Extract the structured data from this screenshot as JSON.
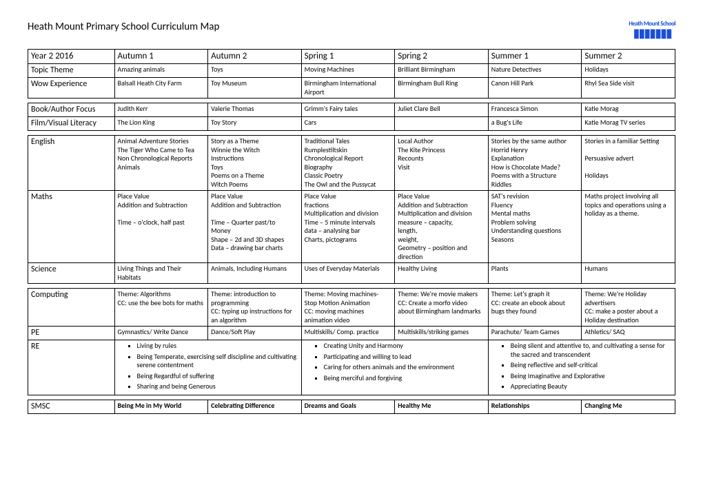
{
  "title": "Heath Mount Primary School Curriculum Map",
  "logo": {
    "arc_text": "Heath Mount School",
    "people": "iiiiiiii"
  },
  "header_row": {
    "label": "Year 2 2016",
    "cols": [
      "Autumn 1",
      "Autumn 2",
      "Spring 1",
      "Spring 2",
      "Summer 1",
      "Summer 2"
    ]
  },
  "rows_top": [
    {
      "label": "Topic Theme",
      "cells": [
        "Amazing animals",
        "Toys",
        "Moving Machines",
        "Brilliant Birmingham",
        "Nature Detectives",
        "Holidays"
      ]
    },
    {
      "label": "Wow Experience",
      "cells": [
        "Balsall Heath City Farm",
        "Toy Museum",
        "Birmingham International Airport",
        "Birmingham Bull Ring",
        "Canon Hill Park",
        "Rhyl Sea Side visit"
      ]
    }
  ],
  "rows_mid": [
    {
      "label": "Book/Author Focus",
      "cells": [
        "Judith Kerr",
        "Valerie Thomas",
        "Grimm's Fairy tales",
        "Juliet Clare Bell",
        "Francesca Simon",
        "Katie Morag"
      ]
    },
    {
      "label": "Film/Visual Literacy",
      "cells": [
        "The Lion King",
        "Toy Story",
        "Cars",
        "",
        "a Bug's Life",
        "Katie Morag TV series"
      ]
    }
  ],
  "rows_main": [
    {
      "label": "English",
      "cells": [
        "Animal Adventure Stories\nThe Tiger Who Came to Tea\nNon Chronological Reports\nAnimals",
        "Story as a Theme\nWinnie the Witch\nInstructions\nToys\nPoems on a Theme\nWitch Poems",
        "Traditional Tales\nRumplestiltskin\nChronological Report\nBiography\nClassic Poetry\nThe Owl and the Pussycat",
        "Local Author\nThe Kite Princess\nRecounts\nVisit",
        "Stories by the same author\nHorrid Henry\nExplanation\nHow is Chocolate Made?\nPoems with a Structure\nRiddles",
        "Stories in a familiar Setting\n\nPersuasive advert\n\nHolidays"
      ]
    },
    {
      "label": "Maths",
      "cells": [
        " Place Value\nAddition and Subtraction\n\nTime – o'clock, half past",
        "Place Value\nAddition and Subtraction\n\nTime – Quarter past/to\nMoney\nShape – 2d and 3D shapes\nData – drawing bar charts",
        "Place Value\nfractions\nMultiplication and division\nTime – 5 minute intervals\ndata – analysing bar\nCharts, pictograms",
        "Place Value\nAddition and Subtraction\nMultiplication and division\nmeasure – capacity,\nlength,\nweight,\nGeometry – position and direction",
        "SAT's revision\nFluency\nMental maths\nProblem solving\nUnderstanding questions\nSeasons",
        "Maths project involving all topics and operations using a holiday as a theme."
      ]
    },
    {
      "label": "Science",
      "cells": [
        "Living Things and Their Habitats",
        " Animals, Including Humans",
        "Uses of Everyday Materials",
        "Healthy Living",
        "Plants",
        "Humans"
      ]
    }
  ],
  "rows_lower": [
    {
      "label": "Computing",
      "cells": [
        "Theme: Algorithms\nCC: use the bee bots for maths",
        "Theme: introduction to programming\nCC: typing up  instructions for  an algorithm",
        "Theme: Moving machines- Stop Motion Animation\nCC: moving machines animation video",
        "Theme: We're movie makers\nCC: Create a  morfo video about Birmingham landmarks",
        "Theme: Let's graph it\nCC: create an ebook about bugs they found",
        "Theme: We're Holiday advertisers\nCC: make a poster about a Holiday destination"
      ]
    },
    {
      "label": "PE",
      "cells": [
        "Gymnastics/ Write Dance",
        "Dance/Soft Play",
        "Multiskills/ Comp. practice",
        "Multiskills/striking games",
        "Parachute/ Team Games",
        "Athletics/ SAQ"
      ]
    }
  ],
  "re_row": {
    "label": "RE",
    "blocks": [
      [
        "Living by rules",
        "Being Temperate, exercising self discipline and cultivating serene contentment",
        "Being Regardful of suffering",
        "Sharing and being Generous"
      ],
      [
        "Creating Unity and Harmony",
        "Participating and willing to lead",
        "Caring for others animals and the environment",
        "Being merciful and forgiving"
      ],
      [
        "Being silent and attentive to, and cultivating a sense for the sacred and transcendent",
        "Being reflective and self-critical",
        "Being Imaginative and Explorative",
        "Appreciating Beauty"
      ]
    ]
  },
  "smsc_row": {
    "label": "SMSC",
    "cells": [
      "Being Me in My World",
      "Celebrating Difference",
      "Dreams and Goals",
      "Healthy Me",
      "Relationships",
      "Changing Me"
    ]
  }
}
